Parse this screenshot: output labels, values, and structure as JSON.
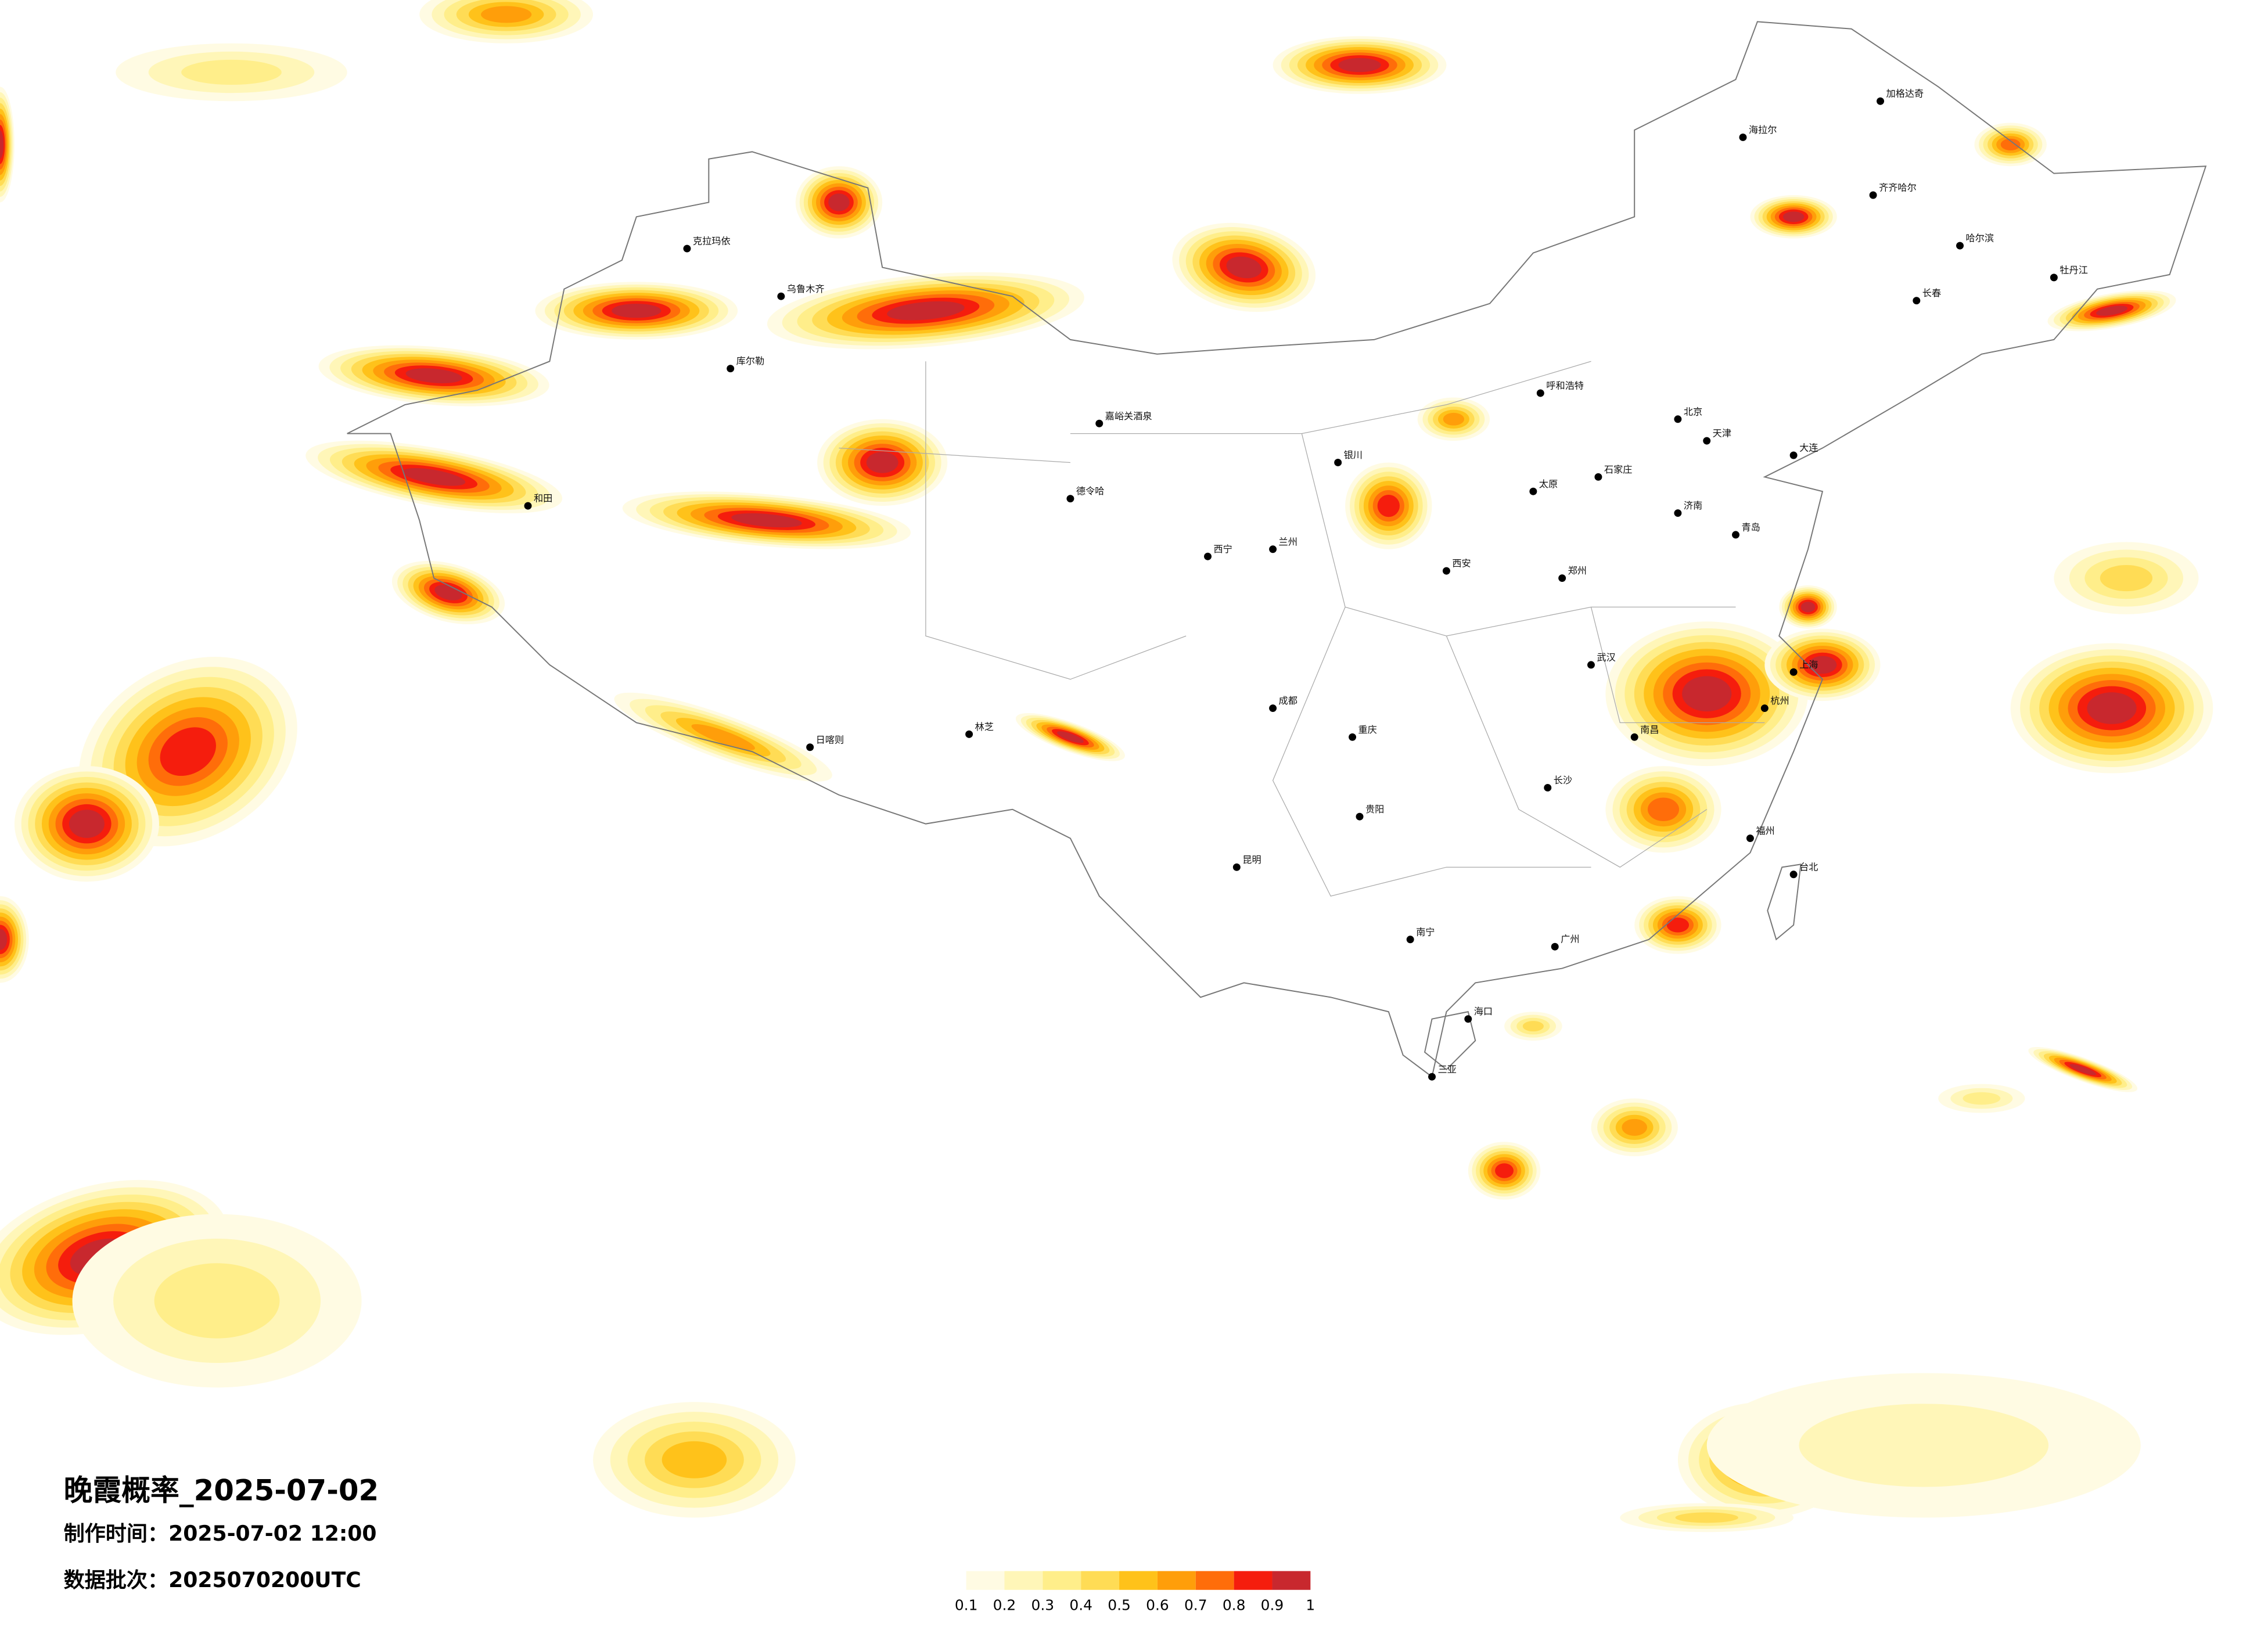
{
  "title": "晚霞概率_2025-07-02",
  "made_time": "制作时间：2025-07-02 12:00",
  "batch": "数据批次：2025070200UTC",
  "legend": {
    "ticks": [
      0.1,
      0.2,
      0.3,
      0.4,
      0.5,
      0.6,
      0.7,
      0.8,
      0.9,
      1
    ],
    "colors": [
      "#fffbe3",
      "#fff6b8",
      "#ffee8a",
      "#ffdc55",
      "#ffc21a",
      "#ff9e0a",
      "#ff6d0a",
      "#f51d0d",
      "#c8282e"
    ]
  },
  "cities": [
    "海拉尔",
    "加格达奇",
    "齐齐哈尔",
    "哈尔滨",
    "长春",
    "牡丹江",
    "克拉玛依",
    "库尔勒",
    "和田",
    "日喀则",
    "林芝",
    "嘉峪关酒泉",
    "德令哈",
    "西宁",
    "兰州",
    "银川",
    "呼和浩特",
    "北京",
    "天津",
    "石家庄",
    "太原",
    "济南",
    "郑州",
    "西安",
    "成都",
    "重庆",
    "武汉",
    "长沙",
    "南昌",
    "杭州",
    "上海",
    "福州",
    "广州",
    "南宁",
    "昆明",
    "贵阳",
    "海口",
    "三亚",
    "台北",
    "大连",
    "青岛",
    "乌鲁木齐"
  ]
}
